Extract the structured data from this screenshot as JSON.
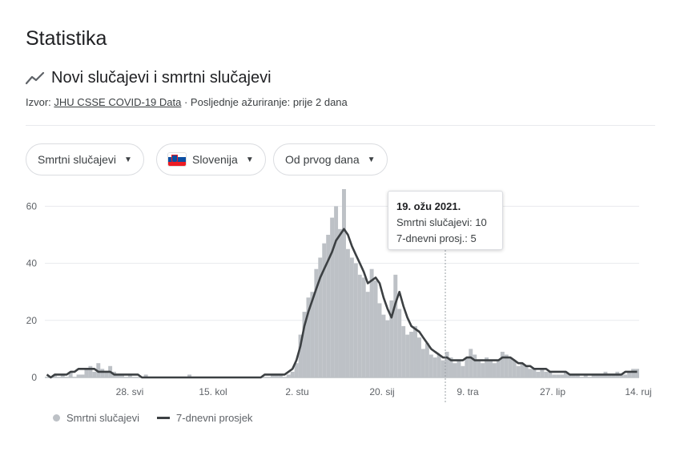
{
  "page_title": "Statistika",
  "card": {
    "title": "Novi slučajevi i smrtni slučajevi",
    "source_prefix": "Izvor:",
    "source_link": "JHU CSSE COVID-19 Data",
    "updated": " · Posljednje ažuriranje: prije 2 dana",
    "icon": "trending-line-icon"
  },
  "filters": {
    "metric": "Smrtni slučajevi",
    "country": "Slovenija",
    "range": "Od prvog dana"
  },
  "tooltip": {
    "date": "19. ožu 2021.",
    "deaths_line": "Smrtni slučajevi: 10",
    "avg_line": "7-dnevni prosj.: 5"
  },
  "legend": {
    "bars": "Smrtni slučajevi",
    "line": "7-dnevni prosjek"
  },
  "colors": {
    "bars": "#bdc1c6",
    "line": "#3c4043",
    "grid": "#e8eaed"
  },
  "chart_data": {
    "type": "bar",
    "title": "",
    "xlabel": "",
    "ylabel": "",
    "ylim": [
      0,
      66
    ],
    "yticks": [
      "0",
      "20",
      "40",
      "60"
    ],
    "xticks": [
      "28. svi",
      "15. kol",
      "2. stu",
      "20. sij",
      "9. tra",
      "27. lip",
      "14. ruj"
    ],
    "series": [
      {
        "name": "Smrtni slučajevi",
        "kind": "bar",
        "values": [
          0,
          0,
          1,
          0,
          1,
          0,
          2,
          0,
          1,
          1,
          3,
          4,
          2,
          5,
          3,
          2,
          4,
          2,
          1,
          1,
          0,
          1,
          0,
          0,
          0,
          1,
          0,
          0,
          0,
          0,
          0,
          0,
          0,
          0,
          0,
          0,
          1,
          0,
          0,
          0,
          0,
          0,
          0,
          0,
          0,
          0,
          0,
          0,
          0,
          0,
          0,
          0,
          0,
          0,
          0,
          0,
          0,
          1,
          1,
          1,
          0,
          1,
          2,
          5,
          15,
          23,
          28,
          30,
          38,
          42,
          47,
          50,
          56,
          60,
          52,
          66,
          45,
          42,
          40,
          36,
          35,
          30,
          38,
          34,
          26,
          22,
          20,
          27,
          36,
          24,
          18,
          15,
          16,
          18,
          14,
          10,
          12,
          8,
          7,
          8,
          6,
          9,
          7,
          5,
          6,
          4,
          7,
          10,
          8,
          6,
          5,
          7,
          6,
          5,
          6,
          9,
          8,
          7,
          6,
          4,
          5,
          4,
          3,
          3,
          2,
          3,
          2,
          2,
          1,
          1,
          1,
          2,
          1,
          1,
          1,
          0,
          1,
          0,
          1,
          1,
          1,
          2,
          1,
          1,
          2,
          1,
          1,
          2,
          3,
          3
        ]
      },
      {
        "name": "7-dnevni prosjek",
        "kind": "line",
        "values": [
          1,
          0,
          1,
          1,
          1,
          1,
          2,
          2,
          3,
          3,
          3,
          3,
          3,
          2,
          2,
          2,
          2,
          1,
          1,
          1,
          1,
          1,
          1,
          1,
          0,
          0,
          0,
          0,
          0,
          0,
          0,
          0,
          0,
          0,
          0,
          0,
          0,
          0,
          0,
          0,
          0,
          0,
          0,
          0,
          0,
          0,
          0,
          0,
          0,
          0,
          0,
          0,
          0,
          0,
          0,
          1,
          1,
          1,
          1,
          1,
          1,
          2,
          3,
          6,
          11,
          18,
          23,
          27,
          31,
          35,
          38,
          41,
          44,
          48,
          50,
          52,
          50,
          46,
          43,
          40,
          37,
          33,
          34,
          35,
          33,
          28,
          24,
          21,
          26,
          30,
          25,
          21,
          18,
          17,
          16,
          14,
          12,
          10,
          9,
          8,
          7,
          7,
          6,
          6,
          6,
          6,
          7,
          7,
          6,
          6,
          6,
          6,
          6,
          6,
          6,
          7,
          7,
          7,
          6,
          5,
          5,
          4,
          4,
          3,
          3,
          3,
          3,
          2,
          2,
          2,
          2,
          2,
          1,
          1,
          1,
          1,
          1,
          1,
          1,
          1,
          1,
          1,
          1,
          1,
          1,
          1,
          2,
          2,
          2,
          2
        ]
      }
    ],
    "hover": {
      "label": "19. ožu 2021.",
      "value": 10,
      "avg": 5
    },
    "grid": true,
    "legend_position": "bottom-left"
  }
}
